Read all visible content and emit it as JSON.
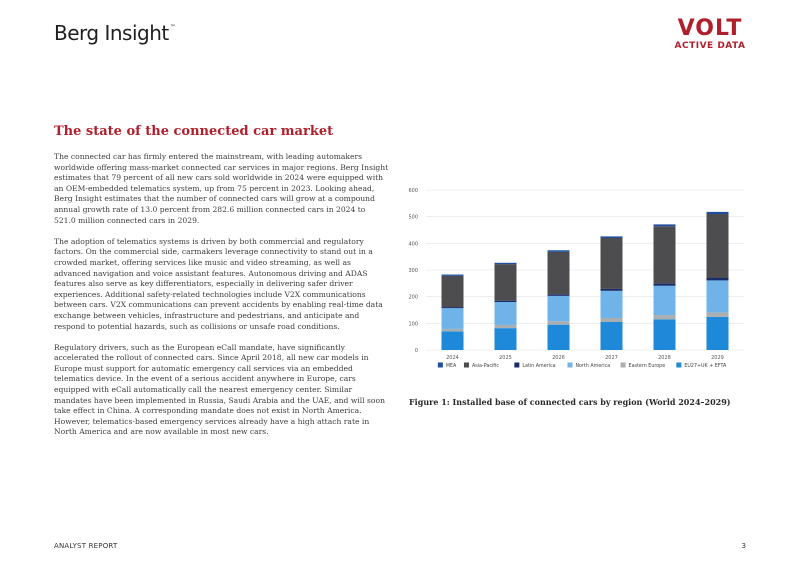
{
  "header": {
    "brand": "Berg Insight",
    "brand_tm": "™",
    "logo_main": "VOLT",
    "logo_sub": "ACTIVE DATA"
  },
  "section_title": "The state of the connected car market",
  "paragraphs": [
    "The connected car has firmly entered the mainstream, with leading automakers worldwide offering mass-market connected car services in major regions. Berg Insight estimates that 79 percent of all new cars sold worldwide in 2024 were equipped with an OEM-embedded telematics system, up from 75 percent in 2023. Looking ahead, Berg Insight estimates that the number of connected cars will grow at a compound annual growth rate of 13.0 percent from 282.6 million connected cars in 2024 to 521.0 million connected cars in 2029.",
    "The adoption of telematics systems is driven by both commercial and regulatory factors. On the commercial side, carmakers leverage connectivity to stand out in a crowded market, offering services like music and video streaming, as well as advanced navigation and voice assistant features. Autonomous driving and ADAS features also serve as key differentiators, especially in delivering safer driver experiences. Additional safety-related technologies include V2X communications between cars. V2X communications can prevent accidents by enabling real-time data exchange between vehicles, infrastructure and pedestrians, and anticipate and respond to potential hazards, such as collisions or unsafe road conditions.",
    "Regulatory drivers, such as the European eCall mandate, have significantly accelerated the rollout of connected cars. Since April 2018, all new car models in Europe must support for automatic emergency call services via an embedded telematics device. In the event of a serious accident anywhere in Europe, cars equipped with eCall automatically call the nearest emergency center. Similar mandates have been implemented in Russia, Saudi Arabia and the UAE, and will soon take effect in China. A corresponding mandate does not exist in North America. However, telematics-based emergency services already have a high attach rate in North America and are now available in most new cars."
  ],
  "caption": "Figure 1: Installed base of connected cars by region (World 2024–2029)",
  "footer": {
    "left": "ANALYST REPORT",
    "page": "3"
  },
  "chart_data": {
    "type": "bar",
    "stacked": true,
    "categories": [
      "2024",
      "2025",
      "2026",
      "2027",
      "2028",
      "2029"
    ],
    "ylim": [
      0,
      600
    ],
    "yticks": [
      "0",
      "100",
      "200",
      "300",
      "400",
      "500",
      "600"
    ],
    "grid": true,
    "legend_position": "bottom",
    "series": [
      {
        "name": "EU27+UK + EFTA",
        "color": "#1e88d9",
        "values": [
          70,
          82,
          95,
          105,
          115,
          124
        ]
      },
      {
        "name": "Eastern Europe",
        "color": "#a9aeb3",
        "values": [
          9,
          12,
          13,
          15,
          16,
          17
        ]
      },
      {
        "name": "North America",
        "color": "#6fb3e8",
        "values": [
          78,
          86,
          95,
          102,
          110,
          120
        ]
      },
      {
        "name": "Latin America",
        "color": "#1a2b6b",
        "values": [
          4,
          5,
          6,
          7,
          8,
          9
        ]
      },
      {
        "name": "Asia-Pacific",
        "color": "#4d4d4f",
        "values": [
          117,
          137,
          159,
          191,
          215,
          240
        ]
      },
      {
        "name": "MEA",
        "color": "#1f4f9e",
        "values": [
          5,
          5,
          6,
          6,
          7,
          8
        ]
      }
    ],
    "legend_order": [
      "MEA",
      "Asia-Pacific",
      "Latin America",
      "North America",
      "Eastern Europe",
      "EU27+UK + EFTA"
    ]
  }
}
